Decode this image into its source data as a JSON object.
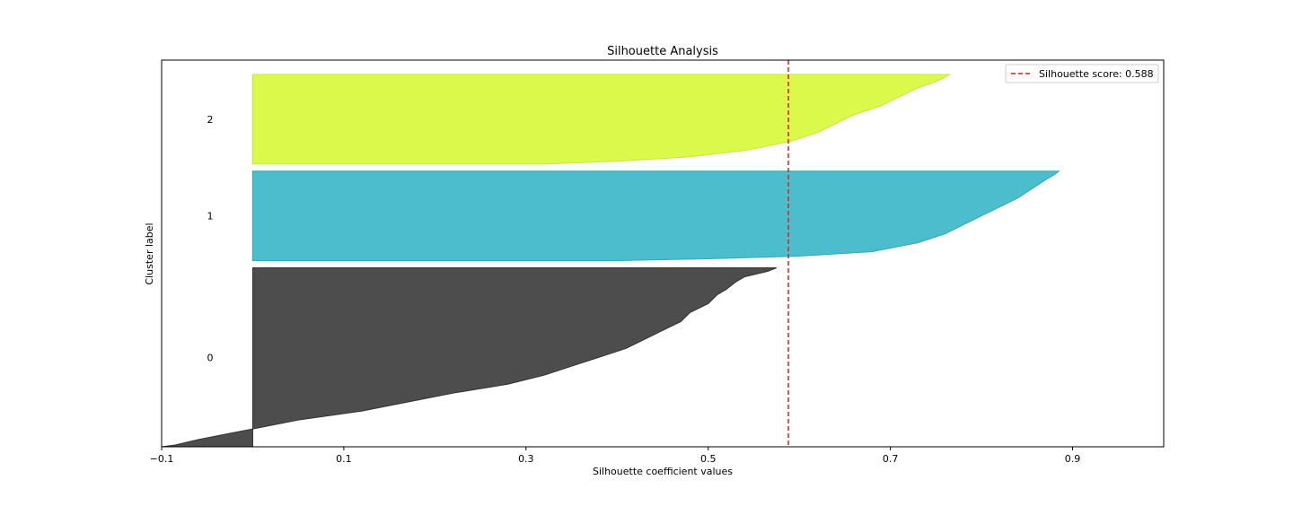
{
  "chart_data": {
    "type": "area",
    "title": "Silhouette Analysis",
    "xlabel": "Silhouette coefficient values",
    "ylabel": "Cluster label",
    "xlim": [
      -0.1,
      1.0
    ],
    "xticks": [
      -0.1,
      0.1,
      0.3,
      0.5,
      0.7,
      0.9
    ],
    "xtick_labels": [
      "−0.1",
      "0.1",
      "0.3",
      "0.5",
      "0.7",
      "0.9"
    ],
    "grid": false,
    "legend_position": "top-right",
    "silhouette_score": 0.588,
    "score_line": {
      "label": "Silhouette score: 0.588",
      "color": "#e01b1b",
      "style": "dashed"
    },
    "clusters": [
      {
        "label": "0",
        "color": "#4d4d4d",
        "edge_color": "#333333",
        "size": 200,
        "profile": [
          [
            0,
            0.575
          ],
          [
            0.02,
            0.565
          ],
          [
            0.05,
            0.54
          ],
          [
            0.08,
            0.53
          ],
          [
            0.12,
            0.52
          ],
          [
            0.15,
            0.51
          ],
          [
            0.2,
            0.5
          ],
          [
            0.25,
            0.48
          ],
          [
            0.3,
            0.47
          ],
          [
            0.35,
            0.45
          ],
          [
            0.4,
            0.43
          ],
          [
            0.45,
            0.41
          ],
          [
            0.5,
            0.38
          ],
          [
            0.55,
            0.35
          ],
          [
            0.6,
            0.32
          ],
          [
            0.65,
            0.28
          ],
          [
            0.7,
            0.22
          ],
          [
            0.75,
            0.17
          ],
          [
            0.8,
            0.12
          ],
          [
            0.85,
            0.05
          ],
          [
            0.9,
            0.0
          ],
          [
            0.93,
            -0.03
          ],
          [
            0.96,
            -0.06
          ],
          [
            0.99,
            -0.085
          ],
          [
            1.0,
            -0.1
          ]
        ]
      },
      {
        "label": "1",
        "color": "#4bbdcc",
        "edge_color": "#2ea9bb",
        "size": 100,
        "profile": [
          [
            0,
            0.885
          ],
          [
            0.04,
            0.88
          ],
          [
            0.1,
            0.87
          ],
          [
            0.2,
            0.855
          ],
          [
            0.3,
            0.84
          ],
          [
            0.4,
            0.82
          ],
          [
            0.5,
            0.8
          ],
          [
            0.6,
            0.78
          ],
          [
            0.7,
            0.76
          ],
          [
            0.8,
            0.73
          ],
          [
            0.9,
            0.68
          ],
          [
            0.95,
            0.6
          ],
          [
            0.98,
            0.5
          ],
          [
            1.0,
            0.4
          ]
        ]
      },
      {
        "label": "2",
        "color": "#dbf94a",
        "edge_color": "#c9e63c",
        "size": 100,
        "profile": [
          [
            0,
            0.765
          ],
          [
            0.03,
            0.76
          ],
          [
            0.08,
            0.75
          ],
          [
            0.15,
            0.73
          ],
          [
            0.25,
            0.71
          ],
          [
            0.35,
            0.69
          ],
          [
            0.45,
            0.66
          ],
          [
            0.55,
            0.64
          ],
          [
            0.65,
            0.62
          ],
          [
            0.75,
            0.59
          ],
          [
            0.85,
            0.54
          ],
          [
            0.92,
            0.48
          ],
          [
            0.97,
            0.4
          ],
          [
            1.0,
            0.32
          ]
        ]
      }
    ]
  }
}
